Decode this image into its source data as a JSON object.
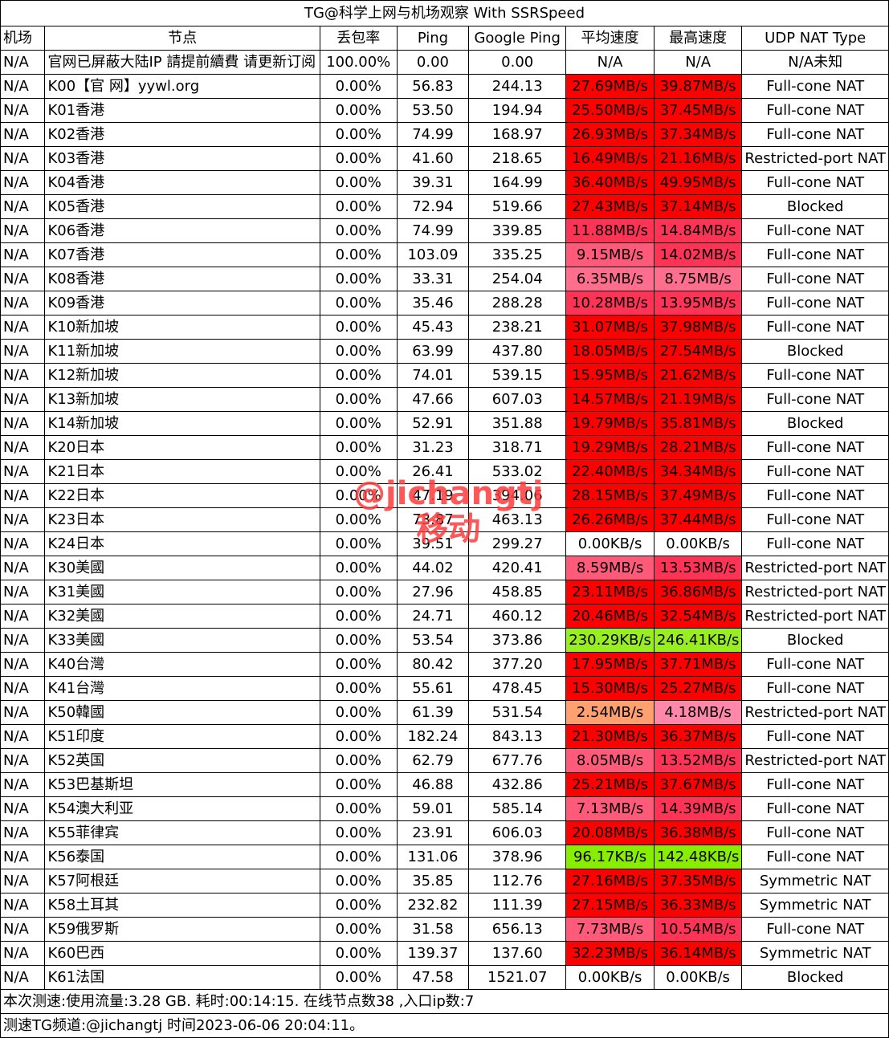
{
  "title": "TG@科学上网与机场观察 With SSRSpeed",
  "headers": [
    "机场",
    "节点",
    "丢包率",
    "Ping",
    "Google Ping",
    "平均速度",
    "最高速度",
    "UDP NAT Type"
  ],
  "rows": [
    {
      "airport": "N/A",
      "node": "官网已屏蔽大陆IP 請提前續費 请更新订阅",
      "loss": "100.00%",
      "ping": "0.00",
      "gping": "0.00",
      "avg": "N/A",
      "max": "N/A",
      "nat": "N/A未知",
      "avg_color": "#ffffff",
      "max_color": "#ffffff"
    },
    {
      "airport": "N/A",
      "node": "K00【官 网】yywl.org",
      "loss": "0.00%",
      "ping": "56.83",
      "gping": "244.13",
      "avg": "27.69MB/s",
      "max": "39.87MB/s",
      "nat": "Full-cone NAT",
      "avg_color": "#ff0000",
      "max_color": "#ff0000"
    },
    {
      "airport": "N/A",
      "node": "K01香港",
      "loss": "0.00%",
      "ping": "53.50",
      "gping": "194.94",
      "avg": "25.50MB/s",
      "max": "37.45MB/s",
      "nat": "Full-cone NAT",
      "avg_color": "#ff0000",
      "max_color": "#ff0000"
    },
    {
      "airport": "N/A",
      "node": "K02香港",
      "loss": "0.00%",
      "ping": "74.99",
      "gping": "168.97",
      "avg": "26.93MB/s",
      "max": "37.34MB/s",
      "nat": "Full-cone NAT",
      "avg_color": "#ff0000",
      "max_color": "#ff0000"
    },
    {
      "airport": "N/A",
      "node": "K03香港",
      "loss": "0.00%",
      "ping": "41.60",
      "gping": "218.65",
      "avg": "16.49MB/s",
      "max": "21.16MB/s",
      "nat": "Restricted-port NAT",
      "avg_color": "#ff0000",
      "max_color": "#ff0000"
    },
    {
      "airport": "N/A",
      "node": "K04香港",
      "loss": "0.00%",
      "ping": "39.31",
      "gping": "164.99",
      "avg": "36.40MB/s",
      "max": "49.95MB/s",
      "nat": "Full-cone NAT",
      "avg_color": "#ff0000",
      "max_color": "#ff0000"
    },
    {
      "airport": "N/A",
      "node": "K05香港",
      "loss": "0.00%",
      "ping": "72.94",
      "gping": "519.66",
      "avg": "27.43MB/s",
      "max": "37.14MB/s",
      "nat": "Blocked",
      "avg_color": "#ff0000",
      "max_color": "#ff0000"
    },
    {
      "airport": "N/A",
      "node": "K06香港",
      "loss": "0.00%",
      "ping": "74.99",
      "gping": "339.85",
      "avg": "11.88MB/s",
      "max": "14.84MB/s",
      "nat": "Full-cone NAT",
      "avg_color": "#ff3355",
      "max_color": "#ff3355"
    },
    {
      "airport": "N/A",
      "node": "K07香港",
      "loss": "0.00%",
      "ping": "103.09",
      "gping": "335.25",
      "avg": "9.15MB/s",
      "max": "14.02MB/s",
      "nat": "Full-cone NAT",
      "avg_color": "#ff5a7a",
      "max_color": "#ff3355"
    },
    {
      "airport": "N/A",
      "node": "K08香港",
      "loss": "0.00%",
      "ping": "33.31",
      "gping": "254.04",
      "avg": "6.35MB/s",
      "max": "8.75MB/s",
      "nat": "Full-cone NAT",
      "avg_color": "#ff6e8c",
      "max_color": "#ff6e8c"
    },
    {
      "airport": "N/A",
      "node": "K09香港",
      "loss": "0.00%",
      "ping": "35.46",
      "gping": "288.28",
      "avg": "10.28MB/s",
      "max": "13.95MB/s",
      "nat": "Full-cone NAT",
      "avg_color": "#ff3355",
      "max_color": "#ff3355"
    },
    {
      "airport": "N/A",
      "node": "K10新加坡",
      "loss": "0.00%",
      "ping": "45.43",
      "gping": "238.21",
      "avg": "31.07MB/s",
      "max": "37.98MB/s",
      "nat": "Full-cone NAT",
      "avg_color": "#ff0000",
      "max_color": "#ff0000"
    },
    {
      "airport": "N/A",
      "node": "K11新加坡",
      "loss": "0.00%",
      "ping": "63.99",
      "gping": "437.80",
      "avg": "18.05MB/s",
      "max": "27.54MB/s",
      "nat": "Blocked",
      "avg_color": "#ff0000",
      "max_color": "#ff0000"
    },
    {
      "airport": "N/A",
      "node": "K12新加坡",
      "loss": "0.00%",
      "ping": "74.01",
      "gping": "539.15",
      "avg": "15.95MB/s",
      "max": "21.62MB/s",
      "nat": "Full-cone NAT",
      "avg_color": "#ff0000",
      "max_color": "#ff0000"
    },
    {
      "airport": "N/A",
      "node": "K13新加坡",
      "loss": "0.00%",
      "ping": "47.66",
      "gping": "607.03",
      "avg": "14.57MB/s",
      "max": "21.19MB/s",
      "nat": "Full-cone NAT",
      "avg_color": "#ff0000",
      "max_color": "#ff0000"
    },
    {
      "airport": "N/A",
      "node": "K14新加坡",
      "loss": "0.00%",
      "ping": "52.91",
      "gping": "351.88",
      "avg": "19.79MB/s",
      "max": "35.81MB/s",
      "nat": "Blocked",
      "avg_color": "#ff0000",
      "max_color": "#ff0000"
    },
    {
      "airport": "N/A",
      "node": "K20日本",
      "loss": "0.00%",
      "ping": "31.23",
      "gping": "318.71",
      "avg": "19.29MB/s",
      "max": "28.21MB/s",
      "nat": "Full-cone NAT",
      "avg_color": "#ff0000",
      "max_color": "#ff0000"
    },
    {
      "airport": "N/A",
      "node": "K21日本",
      "loss": "0.00%",
      "ping": "26.41",
      "gping": "533.02",
      "avg": "22.40MB/s",
      "max": "34.34MB/s",
      "nat": "Full-cone NAT",
      "avg_color": "#ff0000",
      "max_color": "#ff0000"
    },
    {
      "airport": "N/A",
      "node": "K22日本",
      "loss": "0.00%",
      "ping": "47.19",
      "gping": "394.06",
      "avg": "28.15MB/s",
      "max": "37.49MB/s",
      "nat": "Full-cone NAT",
      "avg_color": "#ff0000",
      "max_color": "#ff0000"
    },
    {
      "airport": "N/A",
      "node": "K23日本",
      "loss": "0.00%",
      "ping": "73.87",
      "gping": "463.13",
      "avg": "26.26MB/s",
      "max": "37.44MB/s",
      "nat": "Full-cone NAT",
      "avg_color": "#ff0000",
      "max_color": "#ff0000"
    },
    {
      "airport": "N/A",
      "node": "K24日本",
      "loss": "0.00%",
      "ping": "39.51",
      "gping": "299.27",
      "avg": "0.00KB/s",
      "max": "0.00KB/s",
      "nat": "Full-cone NAT",
      "avg_color": "#ffffff",
      "max_color": "#ffffff"
    },
    {
      "airport": "N/A",
      "node": "K30美國",
      "loss": "0.00%",
      "ping": "44.02",
      "gping": "420.41",
      "avg": "8.59MB/s",
      "max": "13.53MB/s",
      "nat": "Restricted-port NAT",
      "avg_color": "#ff5a7a",
      "max_color": "#ff3355"
    },
    {
      "airport": "N/A",
      "node": "K31美國",
      "loss": "0.00%",
      "ping": "27.96",
      "gping": "458.85",
      "avg": "23.11MB/s",
      "max": "36.86MB/s",
      "nat": "Restricted-port NAT",
      "avg_color": "#ff0000",
      "max_color": "#ff0000"
    },
    {
      "airport": "N/A",
      "node": "K32美國",
      "loss": "0.00%",
      "ping": "24.71",
      "gping": "460.12",
      "avg": "20.46MB/s",
      "max": "32.54MB/s",
      "nat": "Restricted-port NAT",
      "avg_color": "#ff0000",
      "max_color": "#ff0000"
    },
    {
      "airport": "N/A",
      "node": "K33美國",
      "loss": "0.00%",
      "ping": "53.54",
      "gping": "373.86",
      "avg": "230.29KB/s",
      "max": "246.41KB/s",
      "nat": "Blocked",
      "avg_color": "#99ee22",
      "max_color": "#99ee22"
    },
    {
      "airport": "N/A",
      "node": "K40台灣",
      "loss": "0.00%",
      "ping": "80.42",
      "gping": "377.20",
      "avg": "17.95MB/s",
      "max": "37.71MB/s",
      "nat": "Full-cone NAT",
      "avg_color": "#ff0000",
      "max_color": "#ff0000"
    },
    {
      "airport": "N/A",
      "node": "K41台灣",
      "loss": "0.00%",
      "ping": "55.61",
      "gping": "478.45",
      "avg": "15.30MB/s",
      "max": "25.27MB/s",
      "nat": "Full-cone NAT",
      "avg_color": "#ff0000",
      "max_color": "#ff0000"
    },
    {
      "airport": "N/A",
      "node": "K50韓國",
      "loss": "0.00%",
      "ping": "61.39",
      "gping": "531.54",
      "avg": "2.54MB/s",
      "max": "4.18MB/s",
      "nat": "Restricted-port NAT",
      "avg_color": "#ffa070",
      "max_color": "#ff88aa"
    },
    {
      "airport": "N/A",
      "node": "K51印度",
      "loss": "0.00%",
      "ping": "182.24",
      "gping": "843.13",
      "avg": "21.30MB/s",
      "max": "36.37MB/s",
      "nat": "Full-cone NAT",
      "avg_color": "#ff0000",
      "max_color": "#ff0000"
    },
    {
      "airport": "N/A",
      "node": "K52英国",
      "loss": "0.00%",
      "ping": "62.79",
      "gping": "677.76",
      "avg": "8.05MB/s",
      "max": "13.52MB/s",
      "nat": "Restricted-port NAT",
      "avg_color": "#ff5a7a",
      "max_color": "#ff3355"
    },
    {
      "airport": "N/A",
      "node": "K53巴基斯坦",
      "loss": "0.00%",
      "ping": "46.88",
      "gping": "432.86",
      "avg": "25.21MB/s",
      "max": "37.67MB/s",
      "nat": "Full-cone NAT",
      "avg_color": "#ff0000",
      "max_color": "#ff0000"
    },
    {
      "airport": "N/A",
      "node": "K54澳大利亚",
      "loss": "0.00%",
      "ping": "59.01",
      "gping": "585.14",
      "avg": "7.13MB/s",
      "max": "14.39MB/s",
      "nat": "Full-cone NAT",
      "avg_color": "#ff5a7a",
      "max_color": "#ff3355"
    },
    {
      "airport": "N/A",
      "node": "K55菲律宾",
      "loss": "0.00%",
      "ping": "23.91",
      "gping": "606.03",
      "avg": "20.08MB/s",
      "max": "36.38MB/s",
      "nat": "Full-cone NAT",
      "avg_color": "#ff0000",
      "max_color": "#ff0000"
    },
    {
      "airport": "N/A",
      "node": "K56泰国",
      "loss": "0.00%",
      "ping": "131.06",
      "gping": "378.96",
      "avg": "96.17KB/s",
      "max": "142.48KB/s",
      "nat": "Full-cone NAT",
      "avg_color": "#88ee00",
      "max_color": "#88ee00"
    },
    {
      "airport": "N/A",
      "node": "K57阿根廷",
      "loss": "0.00%",
      "ping": "35.85",
      "gping": "112.76",
      "avg": "27.16MB/s",
      "max": "37.35MB/s",
      "nat": "Symmetric NAT",
      "avg_color": "#ff0000",
      "max_color": "#ff0000"
    },
    {
      "airport": "N/A",
      "node": "K58土耳其",
      "loss": "0.00%",
      "ping": "232.82",
      "gping": "111.39",
      "avg": "27.15MB/s",
      "max": "36.33MB/s",
      "nat": "Symmetric NAT",
      "avg_color": "#ff0000",
      "max_color": "#ff0000"
    },
    {
      "airport": "N/A",
      "node": "K59俄罗斯",
      "loss": "0.00%",
      "ping": "31.58",
      "gping": "656.13",
      "avg": "7.73MB/s",
      "max": "10.54MB/s",
      "nat": "Full-cone NAT",
      "avg_color": "#ff5a7a",
      "max_color": "#ff3355"
    },
    {
      "airport": "N/A",
      "node": "K60巴西",
      "loss": "0.00%",
      "ping": "139.37",
      "gping": "137.60",
      "avg": "32.23MB/s",
      "max": "36.14MB/s",
      "nat": "Symmetric NAT",
      "avg_color": "#ff0000",
      "max_color": "#ff0000"
    },
    {
      "airport": "N/A",
      "node": "K61法国",
      "loss": "0.00%",
      "ping": "47.58",
      "gping": "1521.07",
      "avg": "0.00KB/s",
      "max": "0.00KB/s",
      "nat": "Blocked",
      "avg_color": "#ffffff",
      "max_color": "#ffffff"
    }
  ],
  "footer_line1": "本次测速:使用流量:3.28 GB. 耗时:00:14:15. 在线节点数38 ,入口ip数:7",
  "footer_line2": "测速TG频道:@jichangtj 时间2023-06-06 20:04:11。",
  "watermark_line1": "@jichangtj",
  "watermark_line2": "移动",
  "watermark_color": "#ff3b3b"
}
